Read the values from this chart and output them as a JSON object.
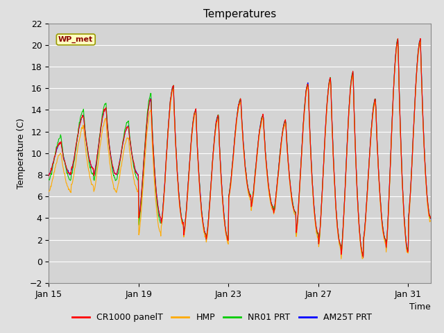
{
  "title": "Temperatures",
  "xlabel": "Time",
  "ylabel": "Temperature (C)",
  "annotation": "WP_met",
  "ylim": [
    -2,
    22
  ],
  "yticks": [
    -2,
    0,
    2,
    4,
    6,
    8,
    10,
    12,
    14,
    16,
    18,
    20,
    22
  ],
  "xtick_labels": [
    "Jan 15",
    "Jan 19",
    "Jan 23",
    "Jan 27",
    "Jan 31"
  ],
  "xtick_positions": [
    0,
    4,
    8,
    12,
    16
  ],
  "xlim": [
    0,
    17
  ],
  "series_names": [
    "CR1000 panelT",
    "HMP",
    "NR01 PRT",
    "AM25T PRT"
  ],
  "series_colors": [
    "#ff0000",
    "#ffaa00",
    "#00cc00",
    "#0000ff"
  ],
  "background_color": "#e0e0e0",
  "plot_bg_color": "#d4d4d4",
  "grid_color": "#ffffff",
  "title_fontsize": 11,
  "axis_fontsize": 9,
  "legend_fontsize": 9,
  "n_days": 17,
  "n_per_day": 48
}
